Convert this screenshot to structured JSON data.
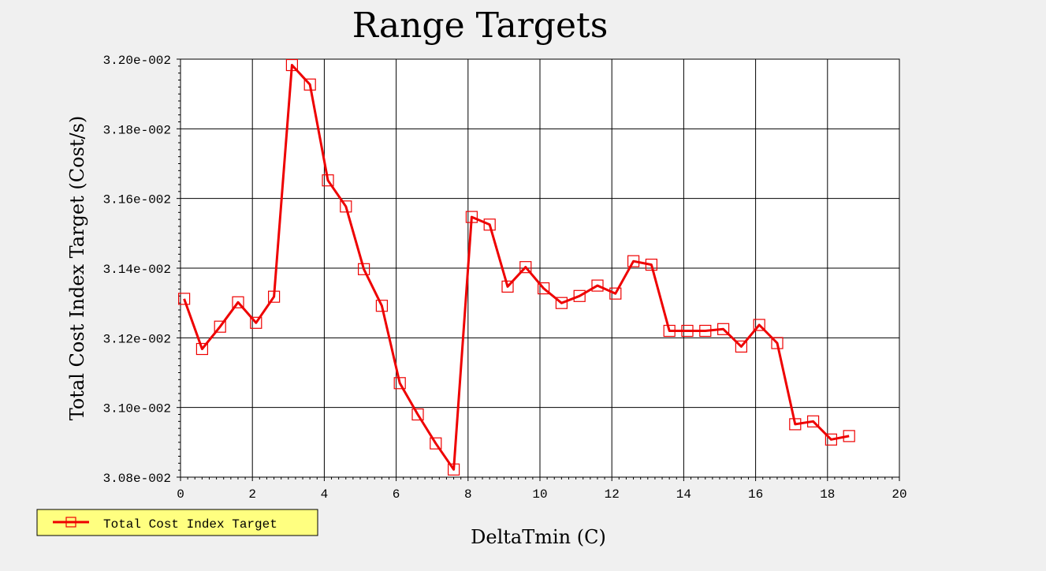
{
  "chart_data": {
    "type": "line",
    "title": "Range Targets",
    "xlabel": "DeltaTmin (C)",
    "ylabel": "Total Cost Index Target (Cost/s)",
    "xlim": [
      0,
      20
    ],
    "ylim": [
      0.0308,
      0.032
    ],
    "x_ticks": [
      "0",
      "2",
      "4",
      "6",
      "8",
      "10",
      "12",
      "14",
      "16",
      "18",
      "20"
    ],
    "y_ticks": [
      "3.08e-002",
      "3.10e-002",
      "3.12e-002",
      "3.14e-002",
      "3.16e-002",
      "3.18e-002",
      "3.20e-002"
    ],
    "grid": true,
    "legend_position": "bottom-left",
    "series_color": "#ee0000",
    "legend_bg": "#ffff80",
    "series": [
      {
        "name": "Total Cost Index Target",
        "x": [
          0.1,
          0.6,
          1.1,
          1.6,
          2.1,
          2.6,
          3.1,
          3.6,
          4.1,
          4.6,
          5.1,
          5.6,
          6.1,
          6.6,
          7.1,
          7.6,
          8.1,
          8.6,
          9.1,
          9.6,
          10.1,
          10.6,
          11.1,
          11.6,
          12.1,
          12.6,
          13.1,
          13.6,
          14.1,
          14.6,
          15.1,
          15.6,
          16.1,
          16.6,
          17.1,
          17.6,
          18.1,
          18.6
        ],
        "values": [
          0.031312,
          0.031168,
          0.031232,
          0.031302,
          0.031243,
          0.031318,
          0.031983,
          0.031927,
          0.031652,
          0.031577,
          0.031397,
          0.031292,
          0.03107,
          0.03098,
          0.030897,
          0.030822,
          0.031547,
          0.031525,
          0.031347,
          0.031403,
          0.031342,
          0.0313,
          0.03132,
          0.03135,
          0.031327,
          0.03142,
          0.03141,
          0.03122,
          0.03122,
          0.03122,
          0.031225,
          0.031175,
          0.031237,
          0.031185,
          0.030952,
          0.03096,
          0.030908,
          0.030918
        ]
      }
    ]
  }
}
